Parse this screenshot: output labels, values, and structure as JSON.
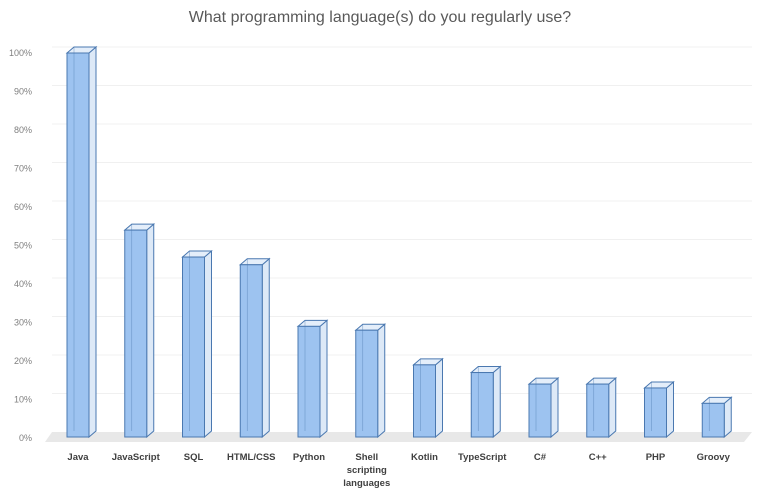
{
  "chart_data": {
    "type": "bar",
    "style": "3d-column",
    "title": "What programming language(s) do you regularly use?",
    "categories": [
      "Java",
      "JavaScript",
      "SQL",
      "HTML/CSS",
      "Python",
      "Shell scripting languages",
      "Kotlin",
      "TypeScript",
      "C#",
      "C++",
      "PHP",
      "Groovy"
    ],
    "values": [
      100,
      54,
      47,
      45,
      29,
      28,
      19,
      17,
      14,
      14,
      13,
      9
    ],
    "ylim": [
      0,
      100
    ],
    "yticks": [
      "0%",
      "10%",
      "20%",
      "30%",
      "40%",
      "50%",
      "60%",
      "70%",
      "80%",
      "90%",
      "100%"
    ],
    "xlabel": "",
    "ylabel": "",
    "grid": true,
    "legend": "none",
    "colors": {
      "bar_front": "#9dc3f0",
      "bar_edge": "#4a78b0",
      "bar_side": "#dde9f7",
      "floor": "#e8e8e8",
      "grid": "#f0f0f0"
    }
  }
}
